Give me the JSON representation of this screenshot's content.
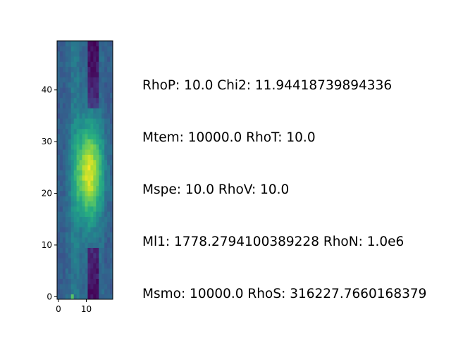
{
  "chart_data": {
    "type": "heatmap",
    "title": "",
    "xlabel": "",
    "ylabel": "",
    "colormap": "viridis",
    "grid": false,
    "xlim": [
      -0.5,
      19.5
    ],
    "ylim": [
      -0.5,
      49.5
    ],
    "xticks": [
      0,
      10
    ],
    "yticks": [
      0,
      10,
      20,
      30,
      40
    ],
    "xtick_labels": [
      "0",
      "10"
    ],
    "ytick_labels": [
      "0",
      "10",
      "20",
      "30",
      "40"
    ],
    "grid_shape": [
      50,
      20
    ]
  },
  "annotations": [
    "RhoP: 10.0 Chi2: 11.94418739894336",
    "Mtem: 10000.0 RhoT: 10.0",
    "Mspe: 10.0 RhoV: 10.0",
    "Ml1: 1778.2794100389228 RhoN: 1.0e6",
    "Msmo: 10000.0 RhoS: 316227.7660168379"
  ],
  "colors": {
    "viridis_low": "#440154",
    "viridis_mid": "#21918c",
    "viridis_high": "#fde725"
  }
}
